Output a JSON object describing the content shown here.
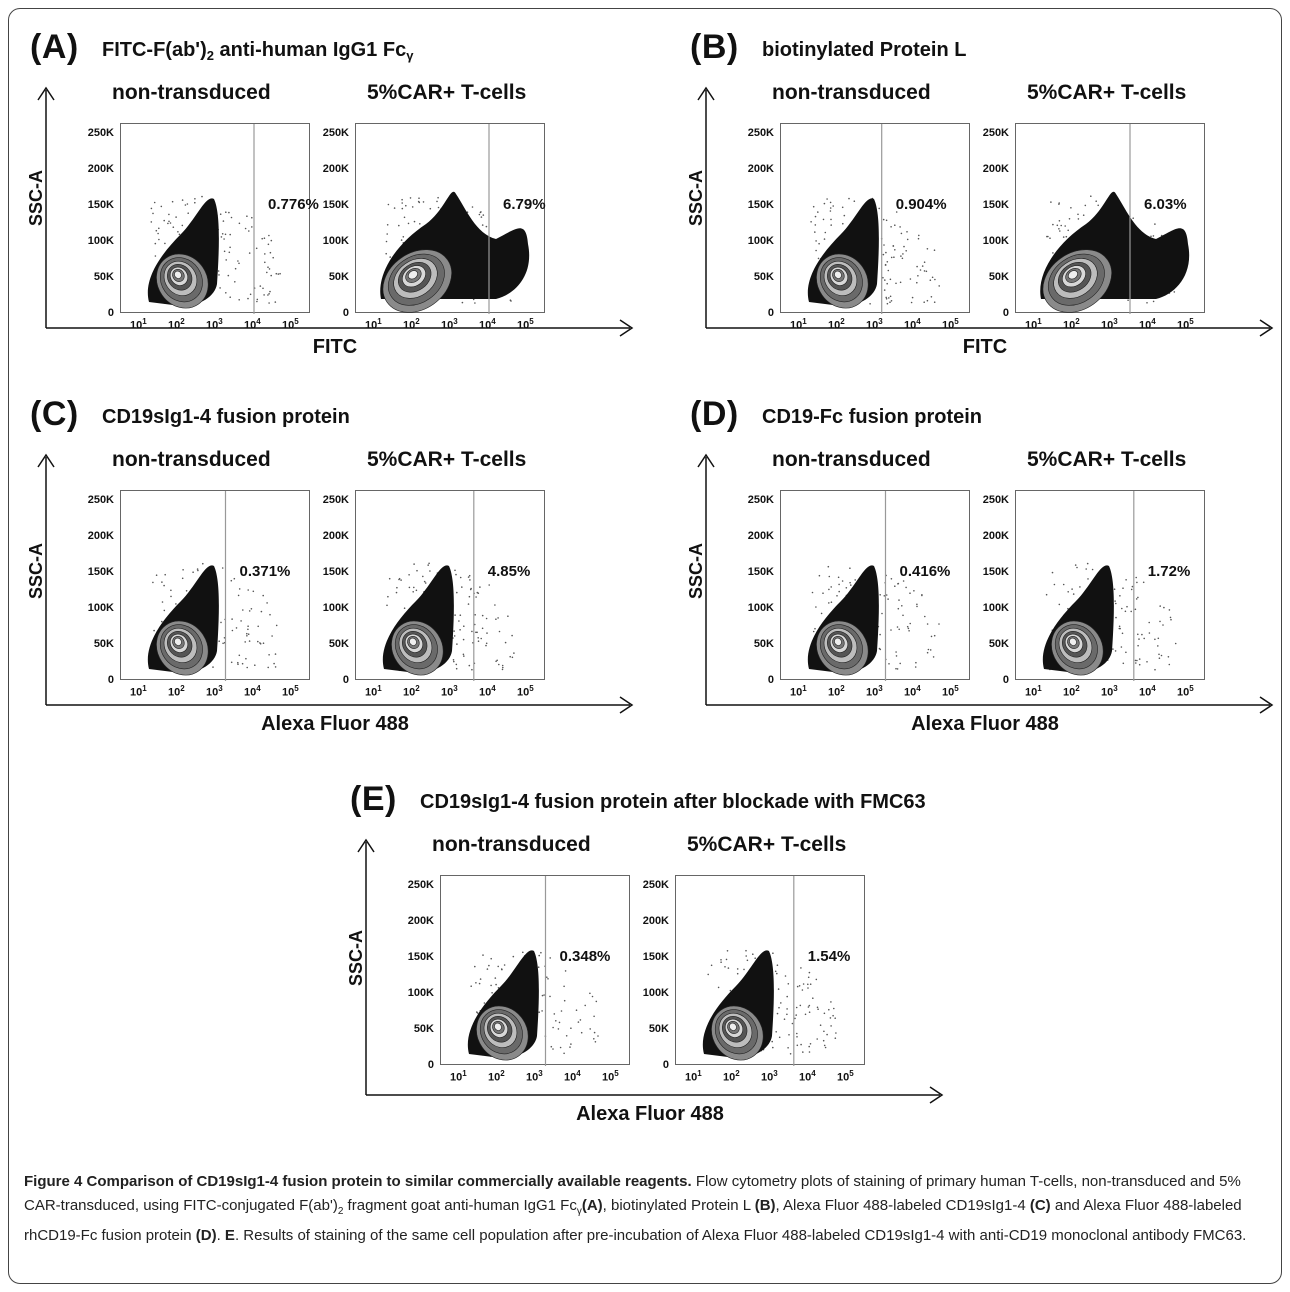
{
  "panels": {
    "A": {
      "letter": "(A)",
      "title": "FITC-F(ab')",
      "title_sub": "2",
      "title_rest": " anti-human IgG1 Fc",
      "title_sub2": "γ",
      "left_label": "non-transduced",
      "right_label": "5%CAR+ T-cells",
      "y_axis": "SSC-A",
      "x_axis": "FITC",
      "left_pct": "0.776%",
      "right_pct": "6.79%"
    },
    "B": {
      "letter": "(B)",
      "title": "biotinylated Protein L",
      "left_label": "non-transduced",
      "right_label": "5%CAR+ T-cells",
      "y_axis": "SSC-A",
      "x_axis": "FITC",
      "left_pct": "0.904%",
      "right_pct": "6.03%"
    },
    "C": {
      "letter": "(C)",
      "title": "CD19sIg1-4  fusion protein",
      "left_label": "non-transduced",
      "right_label": "5%CAR+ T-cells",
      "y_axis": "SSC-A",
      "x_axis": "Alexa Fluor 488",
      "left_pct": "0.371%",
      "right_pct": "4.85%"
    },
    "D": {
      "letter": "(D)",
      "title": "CD19-Fc fusion protein",
      "left_label": "non-transduced",
      "right_label": "5%CAR+ T-cells",
      "y_axis": "SSC-A",
      "x_axis": "Alexa Fluor 488",
      "left_pct": "0.416%",
      "right_pct": "1.72%"
    },
    "E": {
      "letter": "(E)",
      "title": "CD19sIg1-4 fusion protein after blockade with FMC63",
      "left_label": "non-transduced",
      "right_label": "5%CAR+ T-cells",
      "y_axis": "SSC-A",
      "x_axis": "Alexa Fluor 488",
      "left_pct": "0.348%",
      "right_pct": "1.54%"
    }
  },
  "y_ticks": [
    "250K",
    "200K",
    "150K",
    "100K",
    "50K",
    "0"
  ],
  "x_ticks": [
    "10",
    "10",
    "10",
    "10",
    "10"
  ],
  "x_tick_exps": [
    "1",
    "2",
    "3",
    "4",
    "5"
  ],
  "caption": {
    "bold": "Figure 4 Comparison of CD19sIg1-4 fusion protein to similar commercially available reagents.",
    "t1": " Flow cytometry plots of staining of primary human T-cells, non-transduced and 5% CAR-transduced, using FITC-conjugated F(ab')",
    "t1_sub": "2",
    "t2": " fragment goat anti-human IgG1 Fc",
    "t2_sub": "γ",
    "a": "(A)",
    "t3": ", biotinylated Protein L ",
    "b": "(B)",
    "t4": ", Alexa Fluor 488-labeled CD19sIg1-4 ",
    "c": "(C)",
    "t5": " and Alexa Fluor 488-labeled rhCD19-Fc fusion protein ",
    "d": "(D)",
    "t6": ". ",
    "e": "E",
    "t7": ". Results of staining of the same cell population after pre-incubation of Alexa Fluor 488-labeled CD19sIg1-4 with anti-CD19 monoclonal antibody FMC63."
  },
  "colors": {
    "ink": "#111111",
    "gate": "#999999",
    "contour_fill": "#6a6a6a"
  }
}
